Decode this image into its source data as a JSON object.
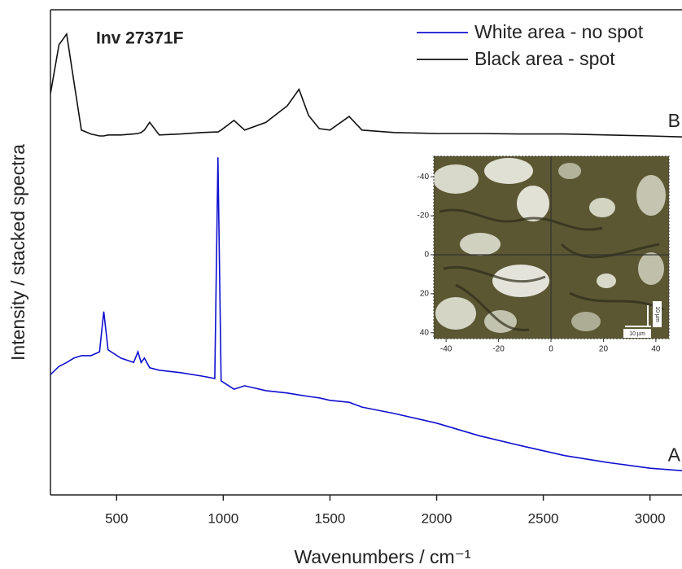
{
  "chart_data": {
    "type": "line",
    "title": "Inv 27371F",
    "x_label": "Wavenumbers / cm⁻¹",
    "y_label": "Intensity / stacked spectra",
    "xlim": [
      190,
      3150
    ],
    "ylim": [
      0,
      100
    ],
    "xticks": [
      500,
      1000,
      1500,
      2000,
      2500,
      3000
    ],
    "x": [
      190,
      230,
      266,
      300,
      335,
      380,
      420,
      440,
      460,
      520,
      580,
      600,
      615,
      630,
      655,
      700,
      800,
      900,
      960,
      975,
      990,
      1050,
      1100,
      1200,
      1300,
      1355,
      1400,
      1450,
      1500,
      1590,
      1650,
      1800,
      2000,
      2200,
      2400,
      2600,
      2800,
      3000,
      3150
    ],
    "series": [
      {
        "name": "White area - no spot",
        "color": "#1010d0",
        "values": [
          24.8,
          26.5,
          27.3,
          28.2,
          28.7,
          28.7,
          29.5,
          37.8,
          29.9,
          28.2,
          27.3,
          29.5,
          27.3,
          28.2,
          26.2,
          25.7,
          25.2,
          24.5,
          24.0,
          69.6,
          23.5,
          21.8,
          22.5,
          21.5,
          21.0,
          20.6,
          20.3,
          20.0,
          19.5,
          19.1,
          18.1,
          16.8,
          14.8,
          12.2,
          10.1,
          8.1,
          6.7,
          5.5,
          5.0
        ]
      },
      {
        "name": "Black area - spot",
        "color": "#111111",
        "values": [
          82.7,
          92.8,
          95.0,
          85.2,
          75.2,
          74.4,
          74.0,
          74.0,
          74.2,
          74.2,
          74.4,
          74.5,
          74.7,
          75.2,
          76.8,
          74.2,
          74.4,
          74.7,
          74.8,
          74.8,
          75.2,
          77.2,
          75.2,
          76.8,
          80.2,
          83.6,
          78.2,
          75.5,
          75.2,
          78.0,
          75.2,
          74.7,
          74.5,
          74.5,
          74.4,
          74.4,
          74.2,
          74.0,
          73.8
        ]
      }
    ],
    "annotations": [
      "A",
      "B"
    ],
    "inset": {
      "xlim": [
        -44.7,
        45
      ],
      "ylim": [
        -50.5,
        43
      ],
      "xticks": [
        -40,
        -20,
        0,
        20,
        40
      ],
      "yticks": [
        -40,
        -20,
        0,
        20,
        40
      ],
      "scale_bar_labels": [
        "10 µm",
        "10 µm"
      ]
    }
  }
}
